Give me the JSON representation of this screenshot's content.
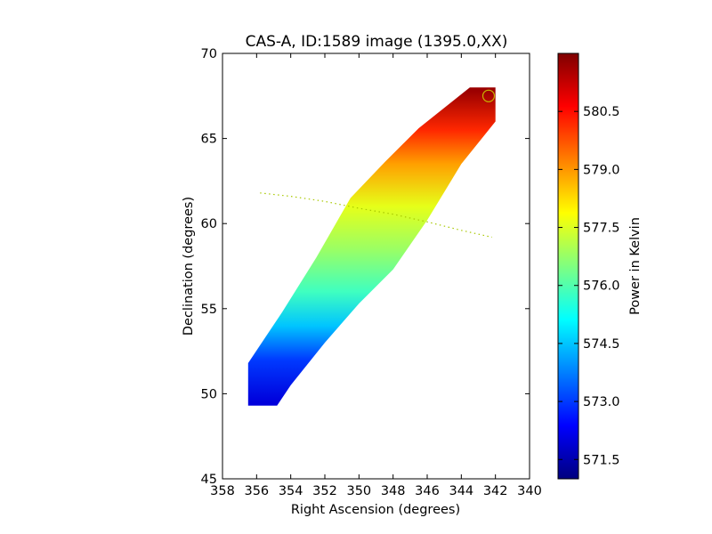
{
  "chart_data": {
    "type": "heatmap",
    "title": "CAS-A, ID:1589 image (1395.0,XX)",
    "xlabel": "Right Ascension (degrees)",
    "ylabel": "Declination (degrees)",
    "xlim": [
      358,
      340
    ],
    "ylim": [
      45,
      70
    ],
    "x_ticks": [
      "358",
      "356",
      "354",
      "352",
      "350",
      "348",
      "346",
      "344",
      "342",
      "340"
    ],
    "y_ticks": [
      "45",
      "50",
      "55",
      "60",
      "65",
      "70"
    ],
    "colorbar": {
      "label": "Power in Kelvin",
      "range": [
        571.0,
        582.0
      ],
      "ticks": [
        "571.5",
        "573.0",
        "574.5",
        "576.0",
        "577.5",
        "579.0",
        "580.5"
      ],
      "colormap": "jet"
    },
    "coverage_band": {
      "left_edge": [
        [
          356.5,
          49.3
        ],
        [
          356.5,
          51.8
        ],
        [
          354.5,
          54.8
        ],
        [
          352.5,
          58.0
        ],
        [
          350.5,
          61.5
        ],
        [
          348.5,
          63.6
        ],
        [
          346.5,
          65.6
        ],
        [
          344.5,
          67.2
        ],
        [
          343.5,
          68.0
        ]
      ],
      "right_edge": [
        [
          342.0,
          68.0
        ],
        [
          342.0,
          66.0
        ],
        [
          344.0,
          63.5
        ],
        [
          346.0,
          60.2
        ],
        [
          348.0,
          57.3
        ],
        [
          350.0,
          55.3
        ],
        [
          352.0,
          53.0
        ],
        [
          354.0,
          50.5
        ],
        [
          354.8,
          49.3
        ]
      ],
      "power_gradient": [
        {
          "dec": 49.5,
          "power": 572.0
        },
        {
          "dec": 52.0,
          "power": 573.0
        },
        {
          "dec": 54.0,
          "power": 574.5
        },
        {
          "dec": 56.0,
          "power": 575.8
        },
        {
          "dec": 58.5,
          "power": 576.8
        },
        {
          "dec": 61.0,
          "power": 577.6
        },
        {
          "dec": 63.5,
          "power": 578.9
        },
        {
          "dec": 65.5,
          "power": 580.2
        },
        {
          "dec": 67.8,
          "power": 581.7
        }
      ]
    },
    "dotted_curve": [
      [
        355.8,
        61.8
      ],
      [
        354.0,
        61.6
      ],
      [
        352.0,
        61.3
      ],
      [
        350.0,
        60.9
      ],
      [
        348.0,
        60.55
      ],
      [
        346.0,
        60.1
      ],
      [
        344.0,
        59.6
      ],
      [
        342.2,
        59.2
      ]
    ],
    "source_marker": {
      "ra": 342.4,
      "dec": 67.5
    },
    "colors": {
      "curve": "#a8c800",
      "marker": "#c8b400"
    }
  }
}
